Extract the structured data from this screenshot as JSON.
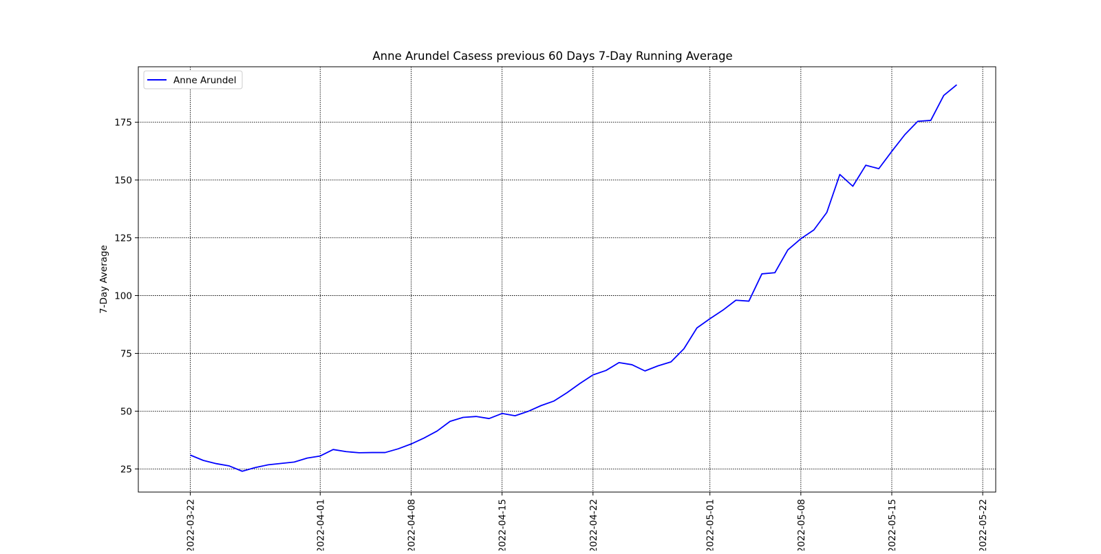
{
  "chart_data": {
    "type": "line",
    "title": "Anne Arundel Casess previous 60 Days 7-Day Running Average",
    "xlabel": "",
    "ylabel": "7-Day Average",
    "x_is_date": true,
    "xlim": [
      "2022-03-18",
      "2022-05-23"
    ],
    "ylim": [
      15,
      199
    ],
    "x_ticks": [
      "2022-03-22",
      "2022-04-01",
      "2022-04-08",
      "2022-04-15",
      "2022-04-22",
      "2022-05-01",
      "2022-05-08",
      "2022-05-15",
      "2022-05-22"
    ],
    "y_ticks": [
      25,
      50,
      75,
      100,
      125,
      150,
      175
    ],
    "grid": true,
    "legend": {
      "position": "top-left",
      "entries": [
        "Anne Arundel"
      ]
    },
    "colors": {
      "series": "#0000ff",
      "grid": "#000000"
    },
    "series": [
      {
        "name": "Anne Arundel",
        "x": [
          "2022-03-22",
          "2022-03-23",
          "2022-03-24",
          "2022-03-25",
          "2022-03-26",
          "2022-03-27",
          "2022-03-28",
          "2022-03-29",
          "2022-03-30",
          "2022-03-31",
          "2022-04-01",
          "2022-04-02",
          "2022-04-03",
          "2022-04-04",
          "2022-04-05",
          "2022-04-06",
          "2022-04-07",
          "2022-04-08",
          "2022-04-09",
          "2022-04-10",
          "2022-04-11",
          "2022-04-12",
          "2022-04-13",
          "2022-04-14",
          "2022-04-15",
          "2022-04-16",
          "2022-04-17",
          "2022-04-18",
          "2022-04-19",
          "2022-04-20",
          "2022-04-21",
          "2022-04-22",
          "2022-04-23",
          "2022-04-24",
          "2022-04-25",
          "2022-04-26",
          "2022-04-27",
          "2022-04-28",
          "2022-04-29",
          "2022-04-30",
          "2022-05-01",
          "2022-05-02",
          "2022-05-03",
          "2022-05-04",
          "2022-05-05",
          "2022-05-06",
          "2022-05-07",
          "2022-05-08",
          "2022-05-09",
          "2022-05-10",
          "2022-05-11",
          "2022-05-12",
          "2022-05-13",
          "2022-05-14",
          "2022-05-15",
          "2022-05-16",
          "2022-05-17",
          "2022-05-18",
          "2022-05-19",
          "2022-05-20"
        ],
        "values": [
          31,
          28.7,
          27.3,
          26.3,
          24,
          25.6,
          26.8,
          27.4,
          28,
          29.7,
          30.6,
          33.4,
          32.5,
          32,
          32.1,
          32.1,
          33.7,
          35.8,
          38.4,
          41.4,
          45.6,
          47.3,
          47.7,
          46.8,
          49,
          48,
          49.9,
          52.4,
          54.4,
          58,
          62,
          65.7,
          67.6,
          71,
          70.1,
          67.4,
          69.6,
          71.3,
          77,
          86,
          90,
          93.7,
          98,
          97.6,
          109.4,
          109.9,
          119.8,
          124.6,
          128.4,
          136,
          152.4,
          147.3,
          156.4,
          154.9,
          162.4,
          169.6,
          175.4,
          175.8,
          186.6,
          191.2
        ]
      }
    ]
  }
}
